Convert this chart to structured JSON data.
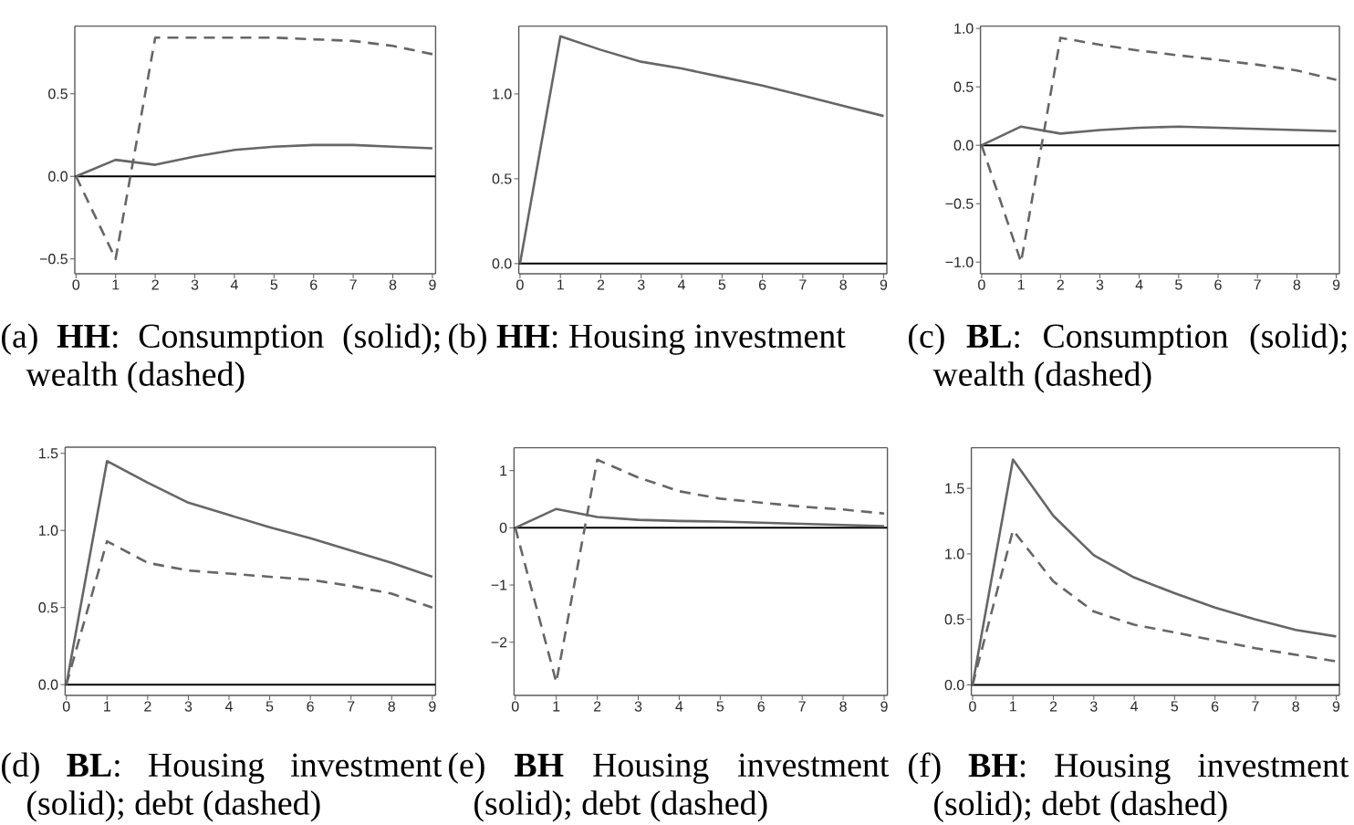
{
  "chart_data": [
    {
      "type": "line",
      "title": "(a) **HH**: Consumption (solid); wealth (dashed)",
      "x": [
        0,
        1,
        2,
        3,
        4,
        5,
        6,
        7,
        8,
        9
      ],
      "series": [
        {
          "color": "#666666",
          "line_style": "solid",
          "values": [
            0,
            0.1,
            0.07,
            0.12,
            0.16,
            0.18,
            0.19,
            0.19,
            0.18,
            0.17
          ]
        },
        {
          "color": "#666666",
          "line_style": "dashed",
          "values": [
            0,
            -0.5,
            0.84,
            0.84,
            0.84,
            0.84,
            0.83,
            0.82,
            0.79,
            0.74
          ]
        }
      ],
      "xlim": [
        -0.03,
        9.08
      ],
      "ylim": [
        -0.59,
        0.91
      ],
      "xticks": [
        0,
        1,
        2,
        3,
        4,
        5,
        6,
        7,
        8,
        9
      ],
      "yticks": [
        {
          "value": -0.5,
          "label": "−0.5"
        },
        {
          "value": 0,
          "label": "0.0"
        },
        {
          "value": 0.5,
          "label": "0.5"
        }
      ],
      "ref_lines": [
        {
          "axis": "y",
          "value": 0,
          "color": "#000000"
        }
      ]
    },
    {
      "type": "line",
      "title": "(b) **HH**: Housing investment",
      "x": [
        0,
        1,
        2,
        3,
        4,
        5,
        6,
        7,
        8,
        9
      ],
      "series": [
        {
          "color": "#666666",
          "line_style": "solid",
          "values": [
            0,
            1.34,
            1.26,
            1.19,
            1.15,
            1.1,
            1.05,
            0.99,
            0.93,
            0.87
          ]
        }
      ],
      "xlim": [
        -0.03,
        9.08
      ],
      "ylim": [
        -0.06,
        1.4
      ],
      "xticks": [
        0,
        1,
        2,
        3,
        4,
        5,
        6,
        7,
        8,
        9
      ],
      "yticks": [
        {
          "value": 0,
          "label": "0.0"
        },
        {
          "value": 0.5,
          "label": "0.5"
        },
        {
          "value": 1,
          "label": "1.0"
        }
      ],
      "ref_lines": [
        {
          "axis": "y",
          "value": 0,
          "color": "#000000"
        }
      ]
    },
    {
      "type": "line",
      "title": "(c) **BL**: Consumption (solid); wealth (dashed)",
      "x": [
        0,
        1,
        2,
        3,
        4,
        5,
        6,
        7,
        8,
        9
      ],
      "series": [
        {
          "color": "#666666",
          "line_style": "solid",
          "values": [
            0,
            0.16,
            0.1,
            0.13,
            0.15,
            0.16,
            0.15,
            0.14,
            0.13,
            0.12
          ]
        },
        {
          "color": "#666666",
          "line_style": "dashed",
          "values": [
            0,
            -1.0,
            0.92,
            0.86,
            0.81,
            0.77,
            0.73,
            0.69,
            0.64,
            0.56
          ]
        }
      ],
      "xlim": [
        -0.03,
        9.08
      ],
      "ylim": [
        -1.1,
        1.02
      ],
      "xticks": [
        0,
        1,
        2,
        3,
        4,
        5,
        6,
        7,
        8,
        9
      ],
      "yticks": [
        {
          "value": -1,
          "label": "−1.0"
        },
        {
          "value": -0.5,
          "label": "−0.5"
        },
        {
          "value": 0,
          "label": "0.0"
        },
        {
          "value": 0.5,
          "label": "0.5"
        },
        {
          "value": 1,
          "label": "1.0"
        }
      ],
      "ref_lines": [
        {
          "axis": "y",
          "value": 0,
          "color": "#000000"
        }
      ]
    },
    {
      "type": "line",
      "title": "(d) **BL**: Housing investment (solid); debt (dashed)",
      "x": [
        0,
        1,
        2,
        3,
        4,
        5,
        6,
        7,
        8,
        9
      ],
      "series": [
        {
          "color": "#666666",
          "line_style": "solid",
          "values": [
            0,
            1.45,
            1.31,
            1.18,
            1.1,
            1.02,
            0.95,
            0.87,
            0.79,
            0.7
          ]
        },
        {
          "color": "#666666",
          "line_style": "dashed",
          "values": [
            0,
            0.93,
            0.79,
            0.74,
            0.72,
            0.7,
            0.68,
            0.64,
            0.59,
            0.5
          ]
        }
      ],
      "xlim": [
        -0.03,
        9.08
      ],
      "ylim": [
        -0.07,
        1.54
      ],
      "xticks": [
        0,
        1,
        2,
        3,
        4,
        5,
        6,
        7,
        8,
        9
      ],
      "yticks": [
        {
          "value": 0,
          "label": "0.0"
        },
        {
          "value": 0.5,
          "label": "0.5"
        },
        {
          "value": 1,
          "label": "1.0"
        },
        {
          "value": 1.5,
          "label": "1.5"
        }
      ],
      "ref_lines": [
        {
          "axis": "y",
          "value": 0,
          "color": "#000000"
        }
      ]
    },
    {
      "type": "line",
      "title": "(e) **BH** Housing investment (solid); debt (dashed)",
      "x": [
        0,
        1,
        2,
        3,
        4,
        5,
        6,
        7,
        8,
        9
      ],
      "series": [
        {
          "color": "#666666",
          "line_style": "solid",
          "values": [
            0,
            0.33,
            0.19,
            0.14,
            0.12,
            0.11,
            0.09,
            0.07,
            0.05,
            0.03
          ]
        },
        {
          "color": "#666666",
          "line_style": "dashed",
          "values": [
            0,
            -2.7,
            1.19,
            0.88,
            0.64,
            0.51,
            0.44,
            0.37,
            0.32,
            0.25
          ]
        }
      ],
      "xlim": [
        -0.03,
        9.08
      ],
      "ylim": [
        -2.93,
        1.4
      ],
      "xticks": [
        0,
        1,
        2,
        3,
        4,
        5,
        6,
        7,
        8,
        9
      ],
      "yticks": [
        {
          "value": -2,
          "label": "−2"
        },
        {
          "value": -1,
          "label": "−1"
        },
        0,
        1
      ],
      "ref_lines": [
        {
          "axis": "y",
          "value": 0,
          "color": "#000000"
        }
      ]
    },
    {
      "type": "line",
      "title": "(f) **BH**: Housing investment (solid); debt (dashed)",
      "x": [
        0,
        1,
        2,
        3,
        4,
        5,
        6,
        7,
        8,
        9
      ],
      "series": [
        {
          "color": "#666666",
          "line_style": "solid",
          "values": [
            0,
            1.72,
            1.29,
            0.99,
            0.82,
            0.7,
            0.59,
            0.5,
            0.42,
            0.37
          ]
        },
        {
          "color": "#666666",
          "line_style": "dashed",
          "values": [
            0,
            1.18,
            0.79,
            0.56,
            0.46,
            0.4,
            0.34,
            0.28,
            0.23,
            0.18
          ]
        }
      ],
      "xlim": [
        -0.03,
        9.08
      ],
      "ylim": [
        -0.08,
        1.81
      ],
      "xticks": [
        0,
        1,
        2,
        3,
        4,
        5,
        6,
        7,
        8,
        9
      ],
      "yticks": [
        {
          "value": 0,
          "label": "0.0"
        },
        {
          "value": 0.5,
          "label": "0.5"
        },
        {
          "value": 1,
          "label": "1.0"
        },
        {
          "value": 1.5,
          "label": "1.5"
        }
      ],
      "ref_lines": [
        {
          "axis": "y",
          "value": 0,
          "color": "#000000"
        }
      ]
    }
  ]
}
